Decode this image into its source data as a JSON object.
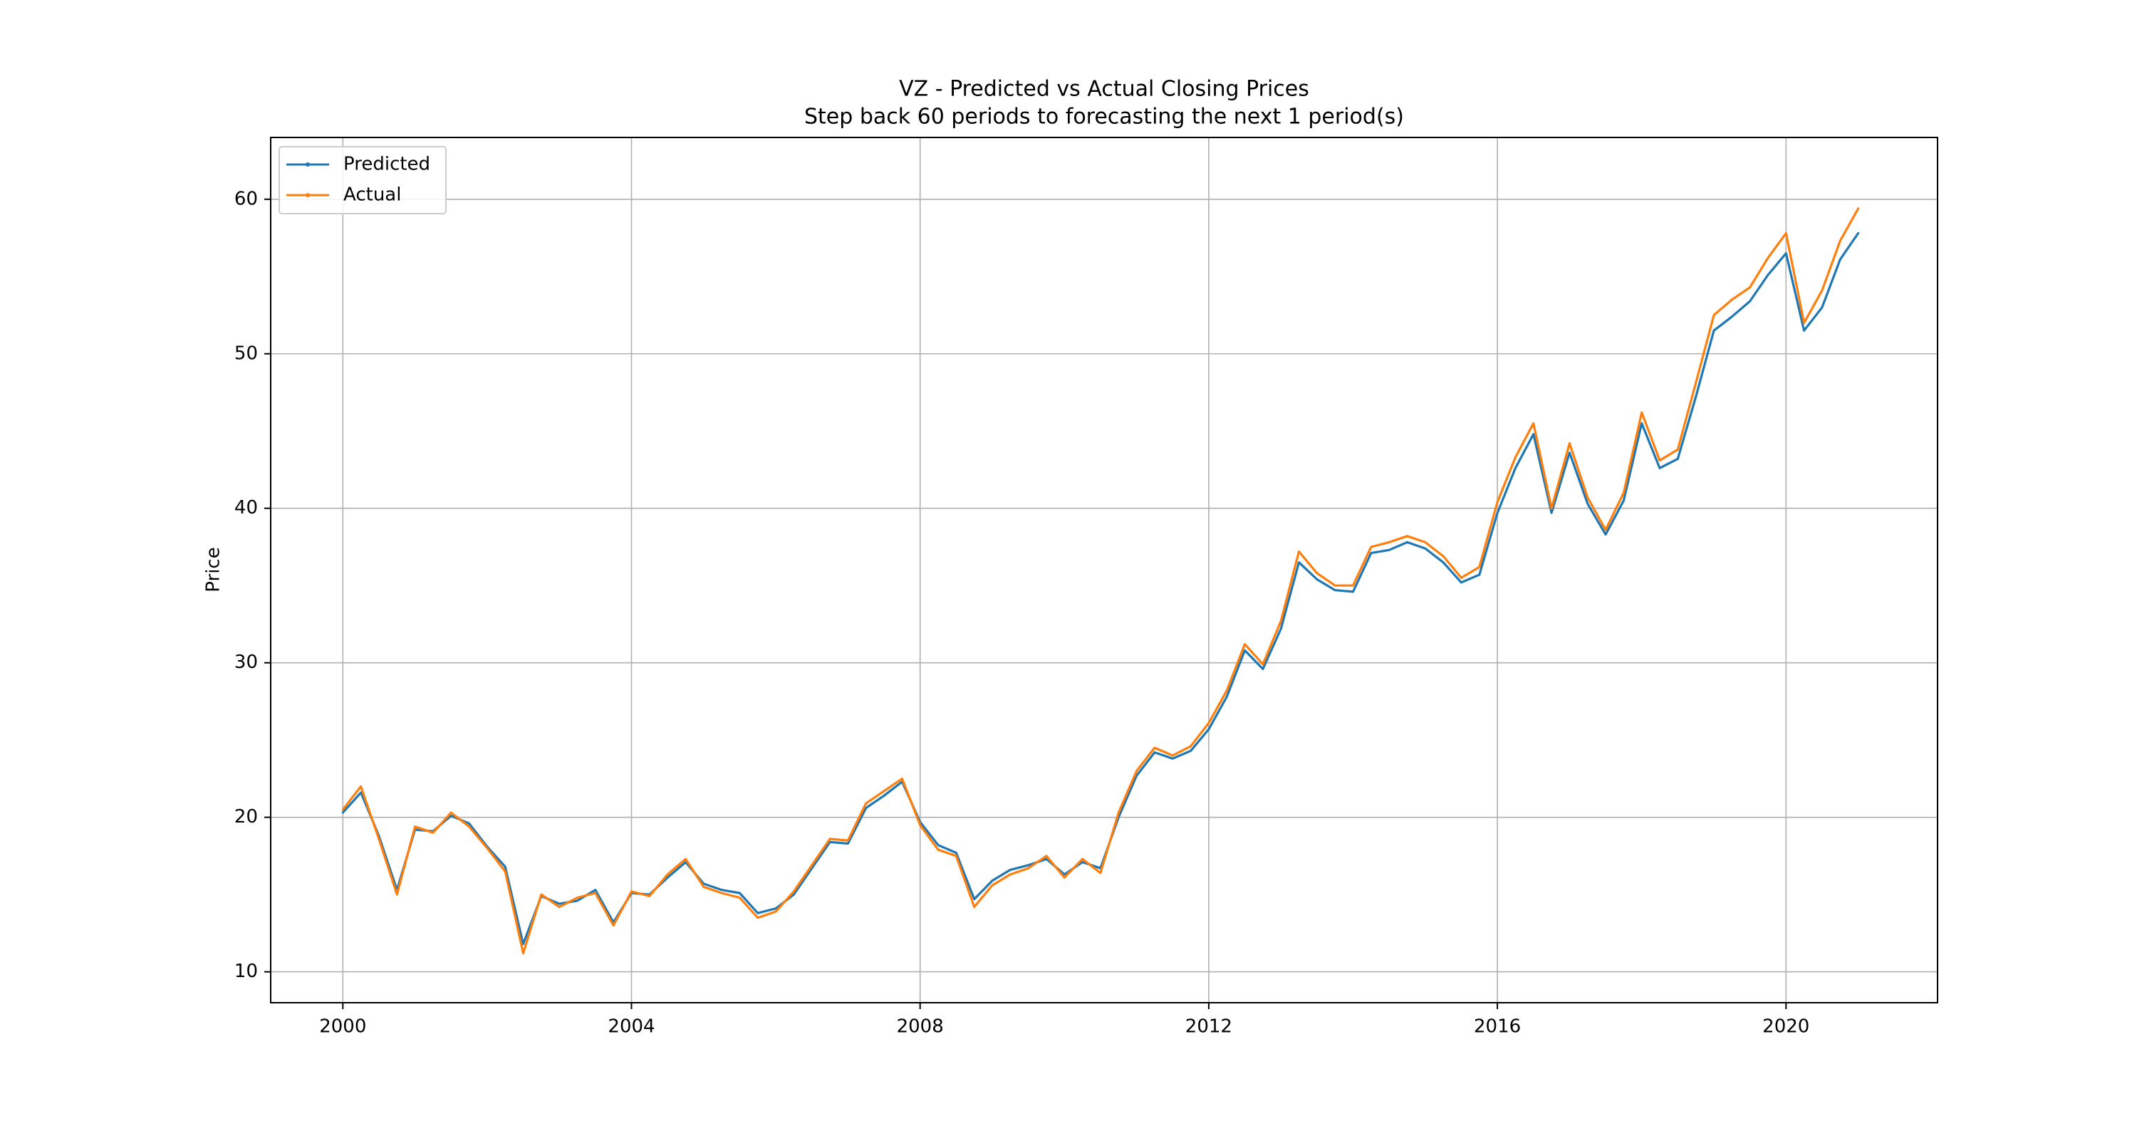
{
  "chart_data": {
    "type": "line",
    "title": "VZ - Predicted vs Actual Closing Prices",
    "subtitle": "Step back 60 periods to forecasting the next 1 period(s)",
    "xlabel": "",
    "ylabel": "Price",
    "xlim": [
      1999.0,
      2022.1
    ],
    "ylim": [
      8.0,
      64.0
    ],
    "x_ticks": [
      2000,
      2004,
      2008,
      2012,
      2016,
      2020
    ],
    "x_tick_labels": [
      "2000",
      "2004",
      "2008",
      "2012",
      "2016",
      "2020"
    ],
    "y_ticks": [
      10,
      20,
      30,
      40,
      50,
      60
    ],
    "y_tick_labels": [
      "10",
      "20",
      "30",
      "40",
      "50",
      "60"
    ],
    "grid": true,
    "legend_position": "top-left",
    "series": [
      {
        "name": "Predicted",
        "color": "#1f77b4",
        "x": [
          2000.0,
          2000.25,
          2000.5,
          2000.75,
          2001.0,
          2001.25,
          2001.5,
          2001.75,
          2002.0,
          2002.25,
          2002.5,
          2002.75,
          2003.0,
          2003.25,
          2003.5,
          2003.75,
          2004.0,
          2004.25,
          2004.5,
          2004.75,
          2005.0,
          2005.25,
          2005.5,
          2005.75,
          2006.0,
          2006.25,
          2006.5,
          2006.75,
          2007.0,
          2007.25,
          2007.5,
          2007.75,
          2008.0,
          2008.25,
          2008.5,
          2008.75,
          2009.0,
          2009.25,
          2009.5,
          2009.75,
          2010.0,
          2010.25,
          2010.5,
          2010.75,
          2011.0,
          2011.25,
          2011.5,
          2011.75,
          2012.0,
          2012.25,
          2012.5,
          2012.75,
          2013.0,
          2013.25,
          2013.5,
          2013.75,
          2014.0,
          2014.25,
          2014.5,
          2014.75,
          2015.0,
          2015.25,
          2015.5,
          2015.75,
          2016.0,
          2016.25,
          2016.5,
          2016.75,
          2017.0,
          2017.25,
          2017.5,
          2017.75,
          2018.0,
          2018.25,
          2018.5,
          2018.75,
          2019.0,
          2019.25,
          2019.5,
          2019.75,
          2020.0,
          2020.25,
          2020.5,
          2020.75,
          2021.0
        ],
        "values": [
          20.3,
          21.6,
          18.8,
          15.3,
          19.2,
          19.1,
          20.1,
          19.6,
          18.1,
          16.8,
          11.8,
          14.9,
          14.4,
          14.6,
          15.3,
          13.2,
          15.1,
          15.0,
          16.1,
          17.1,
          15.7,
          15.3,
          15.1,
          13.8,
          14.1,
          15.0,
          16.7,
          18.4,
          18.3,
          20.6,
          21.4,
          22.3,
          19.7,
          18.2,
          17.7,
          14.7,
          15.9,
          16.6,
          16.9,
          17.3,
          16.3,
          17.1,
          16.7,
          20.0,
          22.7,
          24.2,
          23.8,
          24.3,
          25.7,
          27.8,
          30.8,
          29.6,
          32.2,
          36.5,
          35.4,
          34.7,
          34.6,
          37.1,
          37.3,
          37.8,
          37.4,
          36.5,
          35.2,
          35.7,
          39.7,
          42.6,
          44.8,
          39.7,
          43.6,
          40.3,
          38.3,
          40.5,
          45.5,
          42.6,
          43.2,
          47.2,
          51.5,
          52.4,
          53.4,
          55.1,
          56.5,
          51.5,
          53.0,
          56.1,
          57.8
        ]
      },
      {
        "name": "Actual",
        "color": "#ff7f0e",
        "x": [
          2000.0,
          2000.25,
          2000.5,
          2000.75,
          2001.0,
          2001.25,
          2001.5,
          2001.75,
          2002.0,
          2002.25,
          2002.5,
          2002.75,
          2003.0,
          2003.25,
          2003.5,
          2003.75,
          2004.0,
          2004.25,
          2004.5,
          2004.75,
          2005.0,
          2005.25,
          2005.5,
          2005.75,
          2006.0,
          2006.25,
          2006.5,
          2006.75,
          2007.0,
          2007.25,
          2007.5,
          2007.75,
          2008.0,
          2008.25,
          2008.5,
          2008.75,
          2009.0,
          2009.25,
          2009.5,
          2009.75,
          2010.0,
          2010.25,
          2010.5,
          2010.75,
          2011.0,
          2011.25,
          2011.5,
          2011.75,
          2012.0,
          2012.25,
          2012.5,
          2012.75,
          2013.0,
          2013.25,
          2013.5,
          2013.75,
          2014.0,
          2014.25,
          2014.5,
          2014.75,
          2015.0,
          2015.25,
          2015.5,
          2015.75,
          2016.0,
          2016.25,
          2016.5,
          2016.75,
          2017.0,
          2017.25,
          2017.5,
          2017.75,
          2018.0,
          2018.25,
          2018.5,
          2018.75,
          2019.0,
          2019.25,
          2019.5,
          2019.75,
          2020.0,
          2020.25,
          2020.5,
          2020.75,
          2021.0
        ],
        "values": [
          20.5,
          22.0,
          18.6,
          15.0,
          19.4,
          19.0,
          20.3,
          19.4,
          18.0,
          16.5,
          11.2,
          15.0,
          14.2,
          14.8,
          15.1,
          13.0,
          15.2,
          14.9,
          16.3,
          17.3,
          15.5,
          15.1,
          14.8,
          13.5,
          13.9,
          15.2,
          16.9,
          18.6,
          18.5,
          20.9,
          21.7,
          22.5,
          19.5,
          17.9,
          17.5,
          14.2,
          15.6,
          16.3,
          16.7,
          17.5,
          16.1,
          17.3,
          16.4,
          20.3,
          23.0,
          24.5,
          24.0,
          24.6,
          26.1,
          28.2,
          31.2,
          29.9,
          32.7,
          37.2,
          35.8,
          35.0,
          35.0,
          37.5,
          37.8,
          38.2,
          37.8,
          36.9,
          35.5,
          36.2,
          40.4,
          43.3,
          45.5,
          40.0,
          44.2,
          40.7,
          38.6,
          41.0,
          46.2,
          43.1,
          43.8,
          48.1,
          52.5,
          53.5,
          54.3,
          56.2,
          57.8,
          52.0,
          54.1,
          57.3,
          59.4
        ]
      }
    ]
  }
}
